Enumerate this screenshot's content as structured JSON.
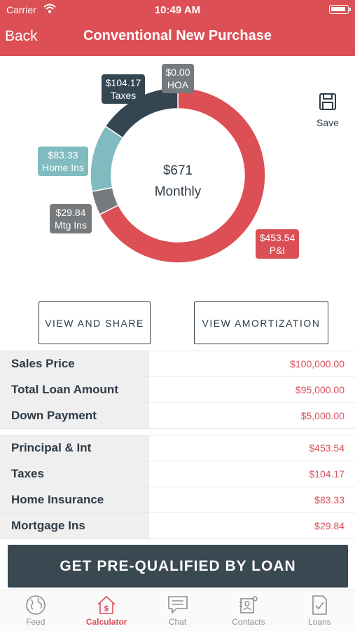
{
  "status_bar": {
    "carrier": "Carrier",
    "time": "10:49 AM"
  },
  "nav": {
    "back": "Back",
    "title": "Conventional New Purchase"
  },
  "chart_data": {
    "type": "pie",
    "style": "donut",
    "center": {
      "amount": "$671",
      "label": "Monthly"
    },
    "slices": [
      {
        "name": "P&I",
        "value": 453.54,
        "label": "$453.54",
        "color": "#dc4f55"
      },
      {
        "name": "Mtg Ins",
        "value": 29.84,
        "label": "$29.84",
        "color": "#777a7c"
      },
      {
        "name": "Home Ins",
        "value": 83.33,
        "label": "$83.33",
        "color": "#80bbbf"
      },
      {
        "name": "Taxes",
        "value": 104.17,
        "label": "$104.17",
        "color": "#344651"
      },
      {
        "name": "HOA",
        "value": 0.0,
        "label": "$0.00",
        "color": "#777a7c"
      }
    ]
  },
  "save": {
    "label": "Save",
    "icon": "save-icon"
  },
  "buttons": {
    "view_share": "VIEW AND SHARE",
    "view_amortization": "VIEW AMORTIZATION"
  },
  "loan_table": [
    {
      "label": "Sales Price",
      "value": "$100,000.00"
    },
    {
      "label": "Total Loan Amount",
      "value": "$95,000.00"
    },
    {
      "label": "Down Payment",
      "value": "$5,000.00"
    }
  ],
  "payment_table": [
    {
      "label": "Principal & Int",
      "value": "$453.54"
    },
    {
      "label": "Taxes",
      "value": "$104.17"
    },
    {
      "label": "Home Insurance",
      "value": "$83.33"
    },
    {
      "label": "Mortgage Ins",
      "value": "$29.84"
    }
  ],
  "cta": "GET PRE-QUALIFIED BY LOAN",
  "tabs": [
    {
      "label": "Feed",
      "icon": "globe-icon",
      "active": false
    },
    {
      "label": "Calculator",
      "icon": "calculator-icon",
      "active": true
    },
    {
      "label": "Chat",
      "icon": "chat-icon",
      "active": false
    },
    {
      "label": "Contacts",
      "icon": "contacts-icon",
      "active": false
    },
    {
      "label": "Loans",
      "icon": "loans-icon",
      "active": false
    }
  ],
  "colors": {
    "brand_red": "#dc4f55",
    "dark_slate": "#3a4852",
    "value_red": "#d8505a"
  }
}
